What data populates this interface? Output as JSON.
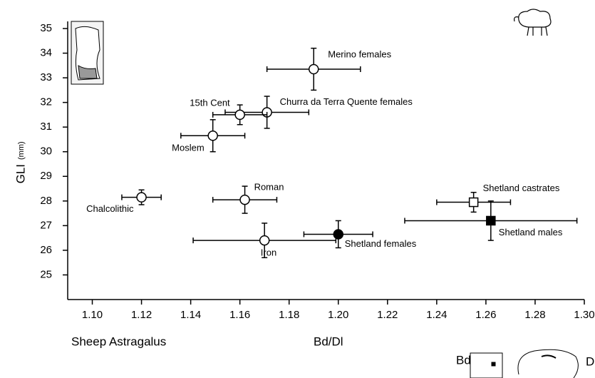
{
  "chart_data": {
    "type": "errorbar-scatter",
    "x_label": "Bd/Dl",
    "y_label": "GLI",
    "y_unit": "(mm)",
    "caption": "Sheep Astragalus",
    "icon_labels": [
      "Bd",
      "D"
    ],
    "xlim": [
      1.09,
      1.3
    ],
    "xticks": [
      {
        "value": 1.1,
        "label": "1.10"
      },
      1.12,
      1.14,
      1.16,
      1.18,
      {
        "value": 1.2,
        "label": "1.20"
      },
      1.22,
      1.24,
      1.26,
      1.28,
      {
        "value": 1.3,
        "label": "1.30"
      }
    ],
    "ylim": [
      24,
      35
    ],
    "yticks": [
      25,
      26,
      27,
      28,
      29,
      30,
      31,
      32,
      33,
      34,
      35
    ],
    "color": "#000000",
    "points": [
      {
        "label": "Merino females",
        "x": 1.19,
        "y": 33.35,
        "xerr": 0.019,
        "yerr": 0.85,
        "marker": "circle",
        "filled": false
      },
      {
        "label": "Churra da Terra Quente females",
        "x": 1.171,
        "y": 31.6,
        "xerr": 0.017,
        "yerr": 0.65,
        "marker": "circle",
        "filled": false
      },
      {
        "label": "15th Cent",
        "x": 1.16,
        "y": 31.5,
        "xerr": 0.011,
        "yerr": 0.4,
        "marker": "circle",
        "filled": false
      },
      {
        "label": "Moslem",
        "x": 1.149,
        "y": 30.65,
        "xerr": 0.013,
        "yerr": 0.65,
        "marker": "circle",
        "filled": false
      },
      {
        "label": "Chalcolithic",
        "x": 1.12,
        "y": 28.15,
        "xerr": 0.008,
        "yerr": 0.3,
        "marker": "circle",
        "filled": false
      },
      {
        "label": "Roman",
        "x": 1.162,
        "y": 28.05,
        "xerr": 0.013,
        "yerr": 0.55,
        "marker": "circle",
        "filled": false
      },
      {
        "label": "Iron",
        "x": 1.17,
        "y": 26.4,
        "xerr": 0.029,
        "yerr": 0.7,
        "marker": "circle",
        "filled": false
      },
      {
        "label": "Shetland females",
        "x": 1.2,
        "y": 26.65,
        "xerr": 0.014,
        "yerr": 0.55,
        "marker": "circle",
        "filled": true
      },
      {
        "label": "Shetland castrates",
        "x": 1.255,
        "y": 27.95,
        "xerr": 0.015,
        "yerr": 0.4,
        "marker": "square",
        "filled": false
      },
      {
        "label": "Shetland males",
        "x": 1.262,
        "y": 27.2,
        "xerr": 0.035,
        "yerr": 0.8,
        "marker": "square",
        "filled": true
      }
    ]
  }
}
